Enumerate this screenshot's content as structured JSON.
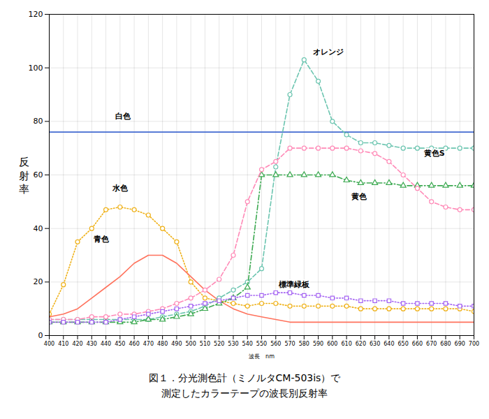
{
  "chart_data": {
    "type": "line",
    "title": "図１．分光測色計（ミノルタCM-503is）で",
    "subtitle": "測定したカラーテープの波長別反射率",
    "x_label": "波長　nm",
    "y_label": "反射率",
    "x": [
      400,
      410,
      420,
      430,
      440,
      450,
      460,
      470,
      480,
      490,
      500,
      510,
      520,
      530,
      540,
      550,
      560,
      570,
      580,
      590,
      600,
      610,
      620,
      630,
      640,
      650,
      660,
      670,
      680,
      690,
      700
    ],
    "xlim": [
      400,
      700
    ],
    "xticks": [
      400,
      410,
      420,
      430,
      440,
      450,
      460,
      470,
      480,
      490,
      500,
      510,
      520,
      530,
      540,
      550,
      560,
      570,
      580,
      590,
      600,
      610,
      620,
      630,
      640,
      650,
      660,
      670,
      680,
      690,
      700
    ],
    "ylim": [
      0,
      120
    ],
    "yticks": [
      0,
      20,
      40,
      60,
      80,
      100,
      120
    ],
    "grid": true,
    "series": [
      {
        "name": "白色",
        "line_style": "solid",
        "marker": "none",
        "values": [
          76,
          76,
          76,
          76,
          76,
          76,
          76,
          76,
          76,
          76,
          76,
          76,
          76,
          76,
          76,
          76,
          76,
          76,
          76,
          76,
          76,
          76,
          76,
          76,
          76,
          76,
          76,
          76,
          76,
          76,
          76
        ]
      },
      {
        "name": "水色",
        "line_style": "dotted",
        "marker": "circle",
        "values": [
          8,
          19,
          35,
          40,
          47,
          48,
          47,
          45,
          40,
          35,
          20,
          14,
          13,
          12,
          11,
          12,
          12,
          11,
          11,
          11,
          11,
          11,
          10,
          10,
          10,
          10,
          10,
          10,
          10,
          10,
          9
        ]
      },
      {
        "name": "青色",
        "line_style": "solid",
        "marker": "none",
        "values": [
          7,
          8,
          10,
          14,
          18,
          22,
          27,
          30,
          30,
          27,
          22,
          17,
          13,
          10,
          8,
          7,
          6,
          5,
          5,
          5,
          5,
          5,
          5,
          5,
          5,
          5,
          5,
          5,
          5,
          5,
          5
        ]
      },
      {
        "name": "オレンジ",
        "line_style": "dashed",
        "marker": "circle",
        "values": [
          6,
          6,
          6,
          6,
          6,
          6,
          6,
          6,
          7,
          8,
          9,
          11,
          14,
          17,
          20,
          25,
          63,
          90,
          103,
          95,
          80,
          75,
          72,
          72,
          71,
          70,
          70,
          70,
          70,
          70,
          70
        ]
      },
      {
        "name": "黄色",
        "line_style": "dashdot",
        "marker": "triangle",
        "values": [
          5,
          5,
          5,
          5,
          5,
          5,
          5,
          6,
          6,
          7,
          8,
          10,
          12,
          14,
          18,
          60,
          60,
          60,
          60,
          60,
          60,
          58,
          57,
          57,
          57,
          56,
          56,
          56,
          56,
          56,
          56
        ]
      },
      {
        "name": "黄色S",
        "line_style": "dashed",
        "marker": "circle",
        "values": [
          6,
          6,
          6,
          7,
          7,
          8,
          8,
          9,
          10,
          12,
          14,
          17,
          21,
          30,
          50,
          62,
          65,
          70,
          70,
          70,
          70,
          70,
          69,
          68,
          65,
          60,
          55,
          50,
          48,
          47,
          47
        ]
      },
      {
        "name": "標準緑板",
        "line_style": "dotted",
        "marker": "square",
        "values": [
          5,
          5,
          5,
          5,
          5,
          6,
          7,
          8,
          9,
          10,
          11,
          12,
          13,
          14,
          15,
          15,
          16,
          16,
          15,
          15,
          14,
          14,
          13,
          13,
          13,
          12,
          12,
          12,
          12,
          11,
          11
        ]
      }
    ],
    "annotations": [
      {
        "text": "白色",
        "x": 452,
        "y": 82
      },
      {
        "text": "水色",
        "x": 450,
        "y": 55
      },
      {
        "text": "青色",
        "x": 437,
        "y": 36
      },
      {
        "text": "オレンジ",
        "x": 597,
        "y": 106
      },
      {
        "text": "黄色",
        "x": 619,
        "y": 52
      },
      {
        "text": "黄色S",
        "x": 672,
        "y": 68
      },
      {
        "text": "標準緑板",
        "x": 573,
        "y": 19
      }
    ]
  }
}
